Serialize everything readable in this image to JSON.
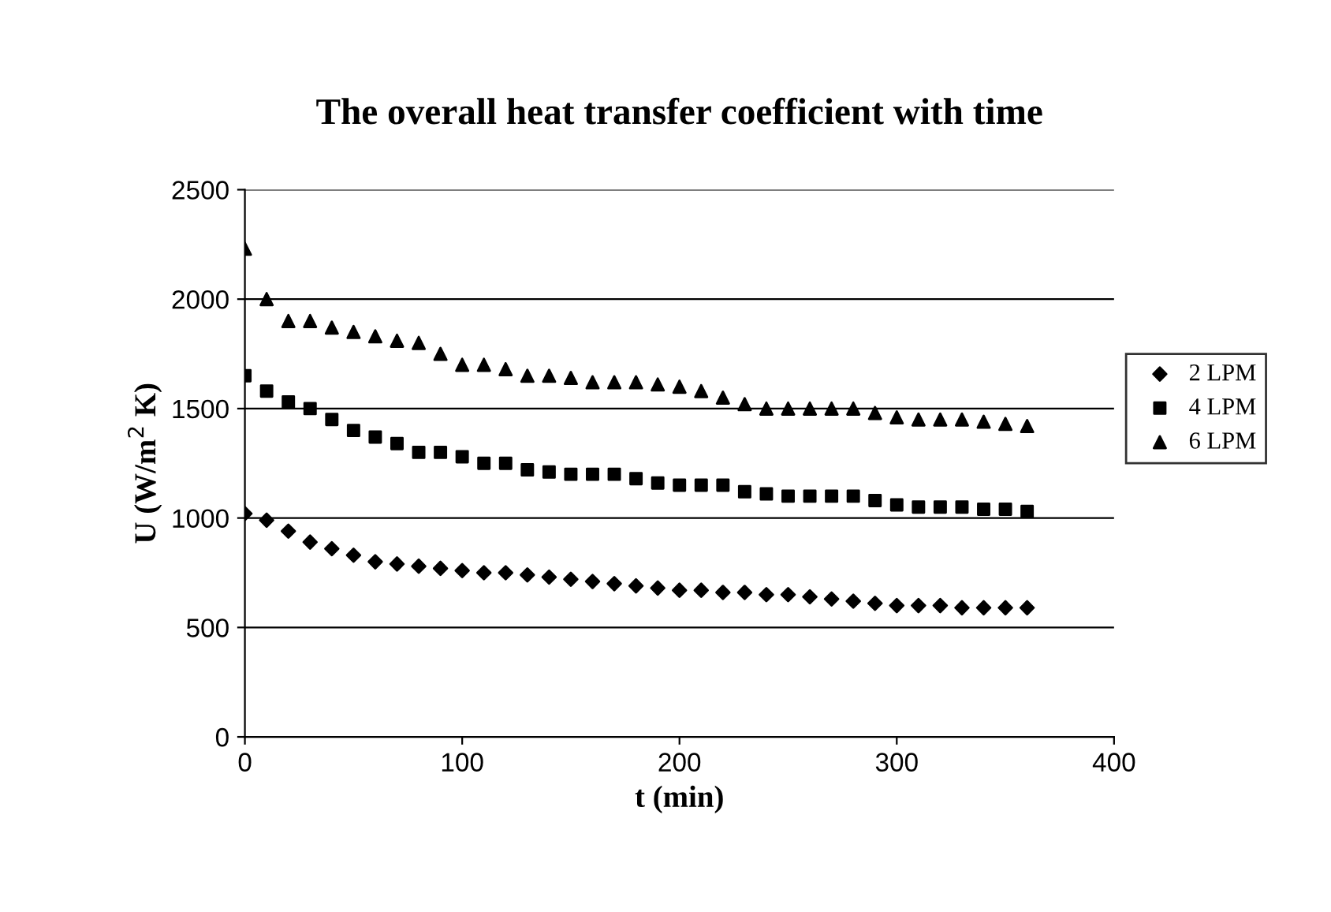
{
  "chart_data": {
    "type": "scatter",
    "title": "The overall heat transfer coefficient with time",
    "xlabel": "t (min)",
    "ylabel": "U (W/m$^{2}$ K)",
    "x": [
      0,
      10,
      20,
      30,
      40,
      50,
      60,
      70,
      80,
      90,
      100,
      110,
      120,
      130,
      140,
      150,
      160,
      170,
      180,
      190,
      200,
      210,
      220,
      230,
      240,
      250,
      260,
      270,
      280,
      290,
      300,
      310,
      320,
      330,
      340,
      350,
      360
    ],
    "series": [
      {
        "name": "2 LPM",
        "color": "#000000",
        "marker": "diamond",
        "values": [
          1020,
          990,
          940,
          890,
          860,
          830,
          800,
          790,
          780,
          770,
          760,
          750,
          750,
          740,
          730,
          720,
          710,
          700,
          690,
          680,
          670,
          670,
          660,
          660,
          650,
          650,
          640,
          630,
          620,
          610,
          600,
          600,
          600,
          590,
          590,
          590,
          590
        ]
      },
      {
        "name": "4 LPM",
        "color": "#000000",
        "marker": "square",
        "values": [
          1650,
          1580,
          1530,
          1500,
          1450,
          1400,
          1370,
          1340,
          1300,
          1300,
          1280,
          1250,
          1250,
          1220,
          1210,
          1200,
          1200,
          1200,
          1180,
          1160,
          1150,
          1150,
          1150,
          1120,
          1110,
          1100,
          1100,
          1100,
          1100,
          1080,
          1060,
          1050,
          1050,
          1050,
          1040,
          1040,
          1030
        ]
      },
      {
        "name": "6 LPM",
        "color": "#000000",
        "marker": "triangle",
        "values": [
          2230,
          2000,
          1900,
          1900,
          1870,
          1850,
          1830,
          1810,
          1800,
          1750,
          1700,
          1700,
          1680,
          1650,
          1650,
          1640,
          1620,
          1620,
          1620,
          1610,
          1600,
          1580,
          1550,
          1520,
          1500,
          1500,
          1500,
          1500,
          1500,
          1480,
          1460,
          1450,
          1450,
          1450,
          1440,
          1430,
          1420
        ]
      }
    ],
    "xlim": [
      0,
      400
    ],
    "xticks": [
      0,
      100,
      200,
      300,
      400
    ],
    "ylim": [
      0,
      2500
    ],
    "yticks": [
      0,
      500,
      1000,
      1500,
      2000,
      2500
    ],
    "grid": "y",
    "legend": "right"
  }
}
